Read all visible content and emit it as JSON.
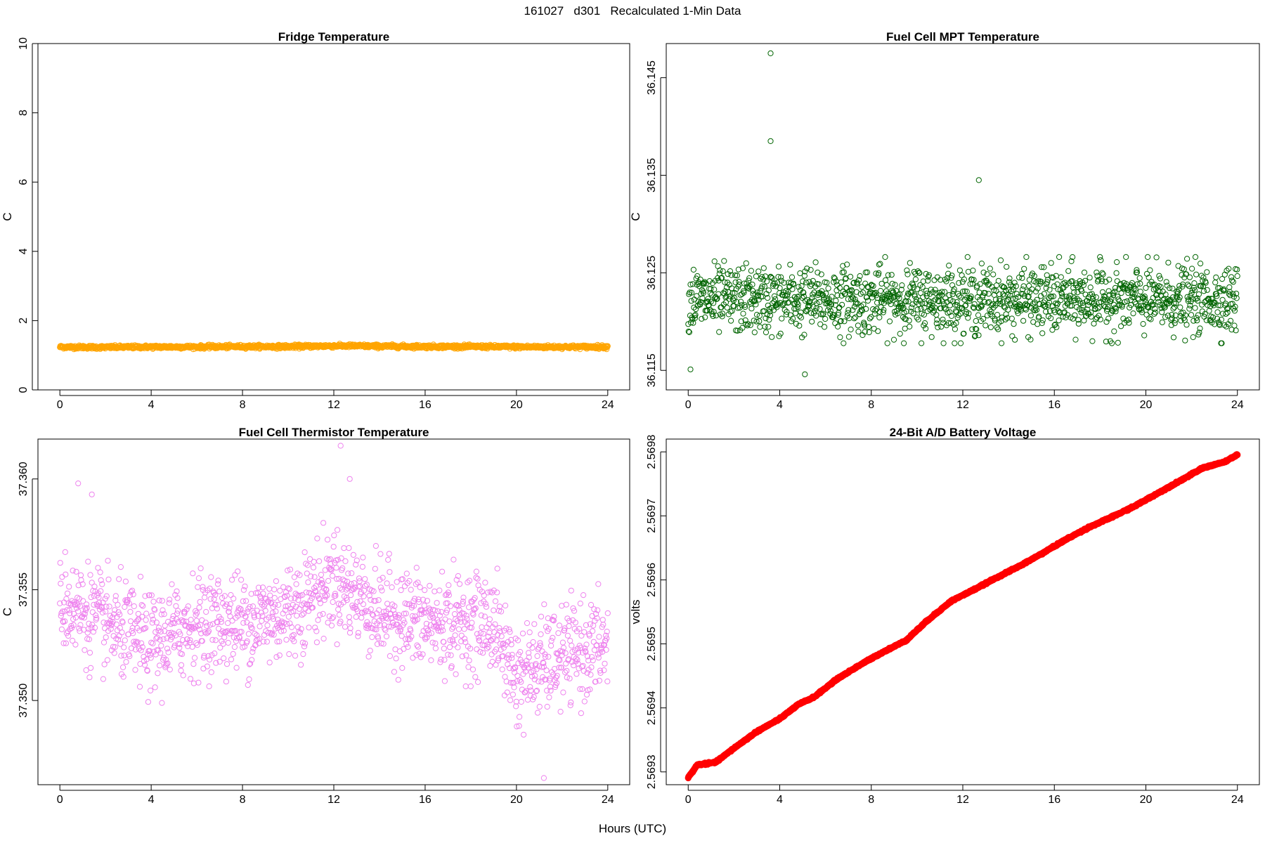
{
  "figure": {
    "title": "161027   d301   Recalculated 1-Min Data",
    "xlabel": "Hours (UTC)"
  },
  "chart_data": [
    {
      "id": "fridge",
      "type": "scatter",
      "title": "Fridge Temperature",
      "xlabel": "Hours (UTC)",
      "ylabel": "C",
      "xlim": [
        0,
        24
      ],
      "ylim": [
        0,
        10
      ],
      "xticks": [
        0,
        4,
        8,
        12,
        16,
        20,
        24
      ],
      "yticks": [
        0,
        2,
        4,
        6,
        8,
        10
      ],
      "ytick_labels": [
        "0",
        "2",
        "4",
        "6",
        "8",
        "10"
      ],
      "color": "#FFA500",
      "marker": "open-circle",
      "series": [
        {
          "name": "Fridge Temperature",
          "x": [
            0,
            2,
            4,
            6,
            8,
            10,
            12,
            13,
            14,
            16,
            18,
            20,
            22,
            24
          ],
          "y": [
            1.24,
            1.23,
            1.24,
            1.24,
            1.25,
            1.25,
            1.27,
            1.27,
            1.26,
            1.25,
            1.25,
            1.24,
            1.24,
            1.24
          ],
          "noise": 0.05,
          "points": 1440
        }
      ]
    },
    {
      "id": "mpt",
      "type": "scatter",
      "title": "Fuel Cell MPT Temperature",
      "xlabel": "Hours (UTC)",
      "ylabel": "C",
      "xlim": [
        0,
        24
      ],
      "ylim": [
        36.113,
        36.1485
      ],
      "xticks": [
        0,
        4,
        8,
        12,
        16,
        20,
        24
      ],
      "yticks": [
        36.115,
        36.125,
        36.135,
        36.145
      ],
      "ytick_labels": [
        "36.115",
        "36.125",
        "36.135",
        "36.145"
      ],
      "color": "#006400",
      "marker": "open-circle",
      "series": [
        {
          "name": "Fuel Cell MPT Temperature",
          "x": [
            0,
            24
          ],
          "y": [
            36.1222,
            36.1222
          ],
          "noise": 0.0034,
          "points": 1440,
          "outliers": [
            [
              3.6,
              36.1475
            ],
            [
              3.6,
              36.1385
            ],
            [
              12.7,
              36.1345
            ],
            [
              0.1,
              36.1151
            ],
            [
              5.1,
              36.1146
            ]
          ]
        }
      ]
    },
    {
      "id": "thermistor",
      "type": "scatter",
      "title": "Fuel Cell Thermistor Temperature",
      "xlabel": "Hours (UTC)",
      "ylabel": "C",
      "xlim": [
        0,
        24
      ],
      "ylim": [
        37.3462,
        37.3618
      ],
      "xticks": [
        0,
        4,
        8,
        12,
        16,
        20,
        24
      ],
      "yticks": [
        37.35,
        37.355,
        37.36
      ],
      "ytick_labels": [
        "37.350",
        "37.355",
        "37.360"
      ],
      "color": "#EE82EE",
      "marker": "open-circle",
      "series": [
        {
          "name": "Fuel Cell Thermistor Temperature",
          "x": [
            0,
            2,
            4,
            6,
            8,
            10,
            12,
            14,
            16,
            18,
            19,
            20,
            22,
            24
          ],
          "y": [
            37.3545,
            37.3535,
            37.3525,
            37.3535,
            37.3535,
            37.354,
            37.3555,
            37.354,
            37.3535,
            37.3535,
            37.3535,
            37.351,
            37.352,
            37.3525
          ],
          "noise": 0.0022,
          "points": 1440,
          "outliers": [
            [
              12.3,
              37.3615
            ],
            [
              0.8,
              37.3598
            ],
            [
              1.4,
              37.3593
            ],
            [
              12.7,
              37.36
            ],
            [
              21.2,
              37.3465
            ]
          ]
        }
      ]
    },
    {
      "id": "battery",
      "type": "line",
      "title": "24-Bit A/D Battery Voltage",
      "xlabel": "Hours (UTC)",
      "ylabel": "volts",
      "xlim": [
        0,
        24
      ],
      "ylim": [
        2.56928,
        2.56982
      ],
      "xticks": [
        0,
        4,
        8,
        12,
        16,
        20,
        24
      ],
      "yticks": [
        2.5693,
        2.5694,
        2.5695,
        2.5696,
        2.5697,
        2.5698
      ],
      "ytick_labels": [
        "2.5693",
        "2.5694",
        "2.5695",
        "2.5696",
        "2.5697",
        "2.5698"
      ],
      "color": "#FF0000",
      "marker": "filled-circle",
      "series": [
        {
          "name": "24-Bit A/D Battery Voltage",
          "x": [
            0,
            0.4,
            1.2,
            2.0,
            3.0,
            4.0,
            4.8,
            5.5,
            6.5,
            7.5,
            8.5,
            9.5,
            10.5,
            11.5,
            12.5,
            13.5,
            14.5,
            15.5,
            16.5,
            17.5,
            18.5,
            19.5,
            20.5,
            21.5,
            22.5,
            23.5,
            24
          ],
          "y": [
            2.569291,
            2.569311,
            2.569315,
            2.569337,
            2.569363,
            2.569383,
            2.569405,
            2.569417,
            2.569445,
            2.569467,
            2.569487,
            2.569505,
            2.569538,
            2.569567,
            2.569585,
            2.569604,
            2.569622,
            2.569642,
            2.569663,
            2.569682,
            2.569698,
            2.569715,
            2.569735,
            2.569755,
            2.569775,
            2.569785,
            2.569796
          ],
          "noise": 1.2e-06,
          "points": 1440
        }
      ]
    }
  ]
}
